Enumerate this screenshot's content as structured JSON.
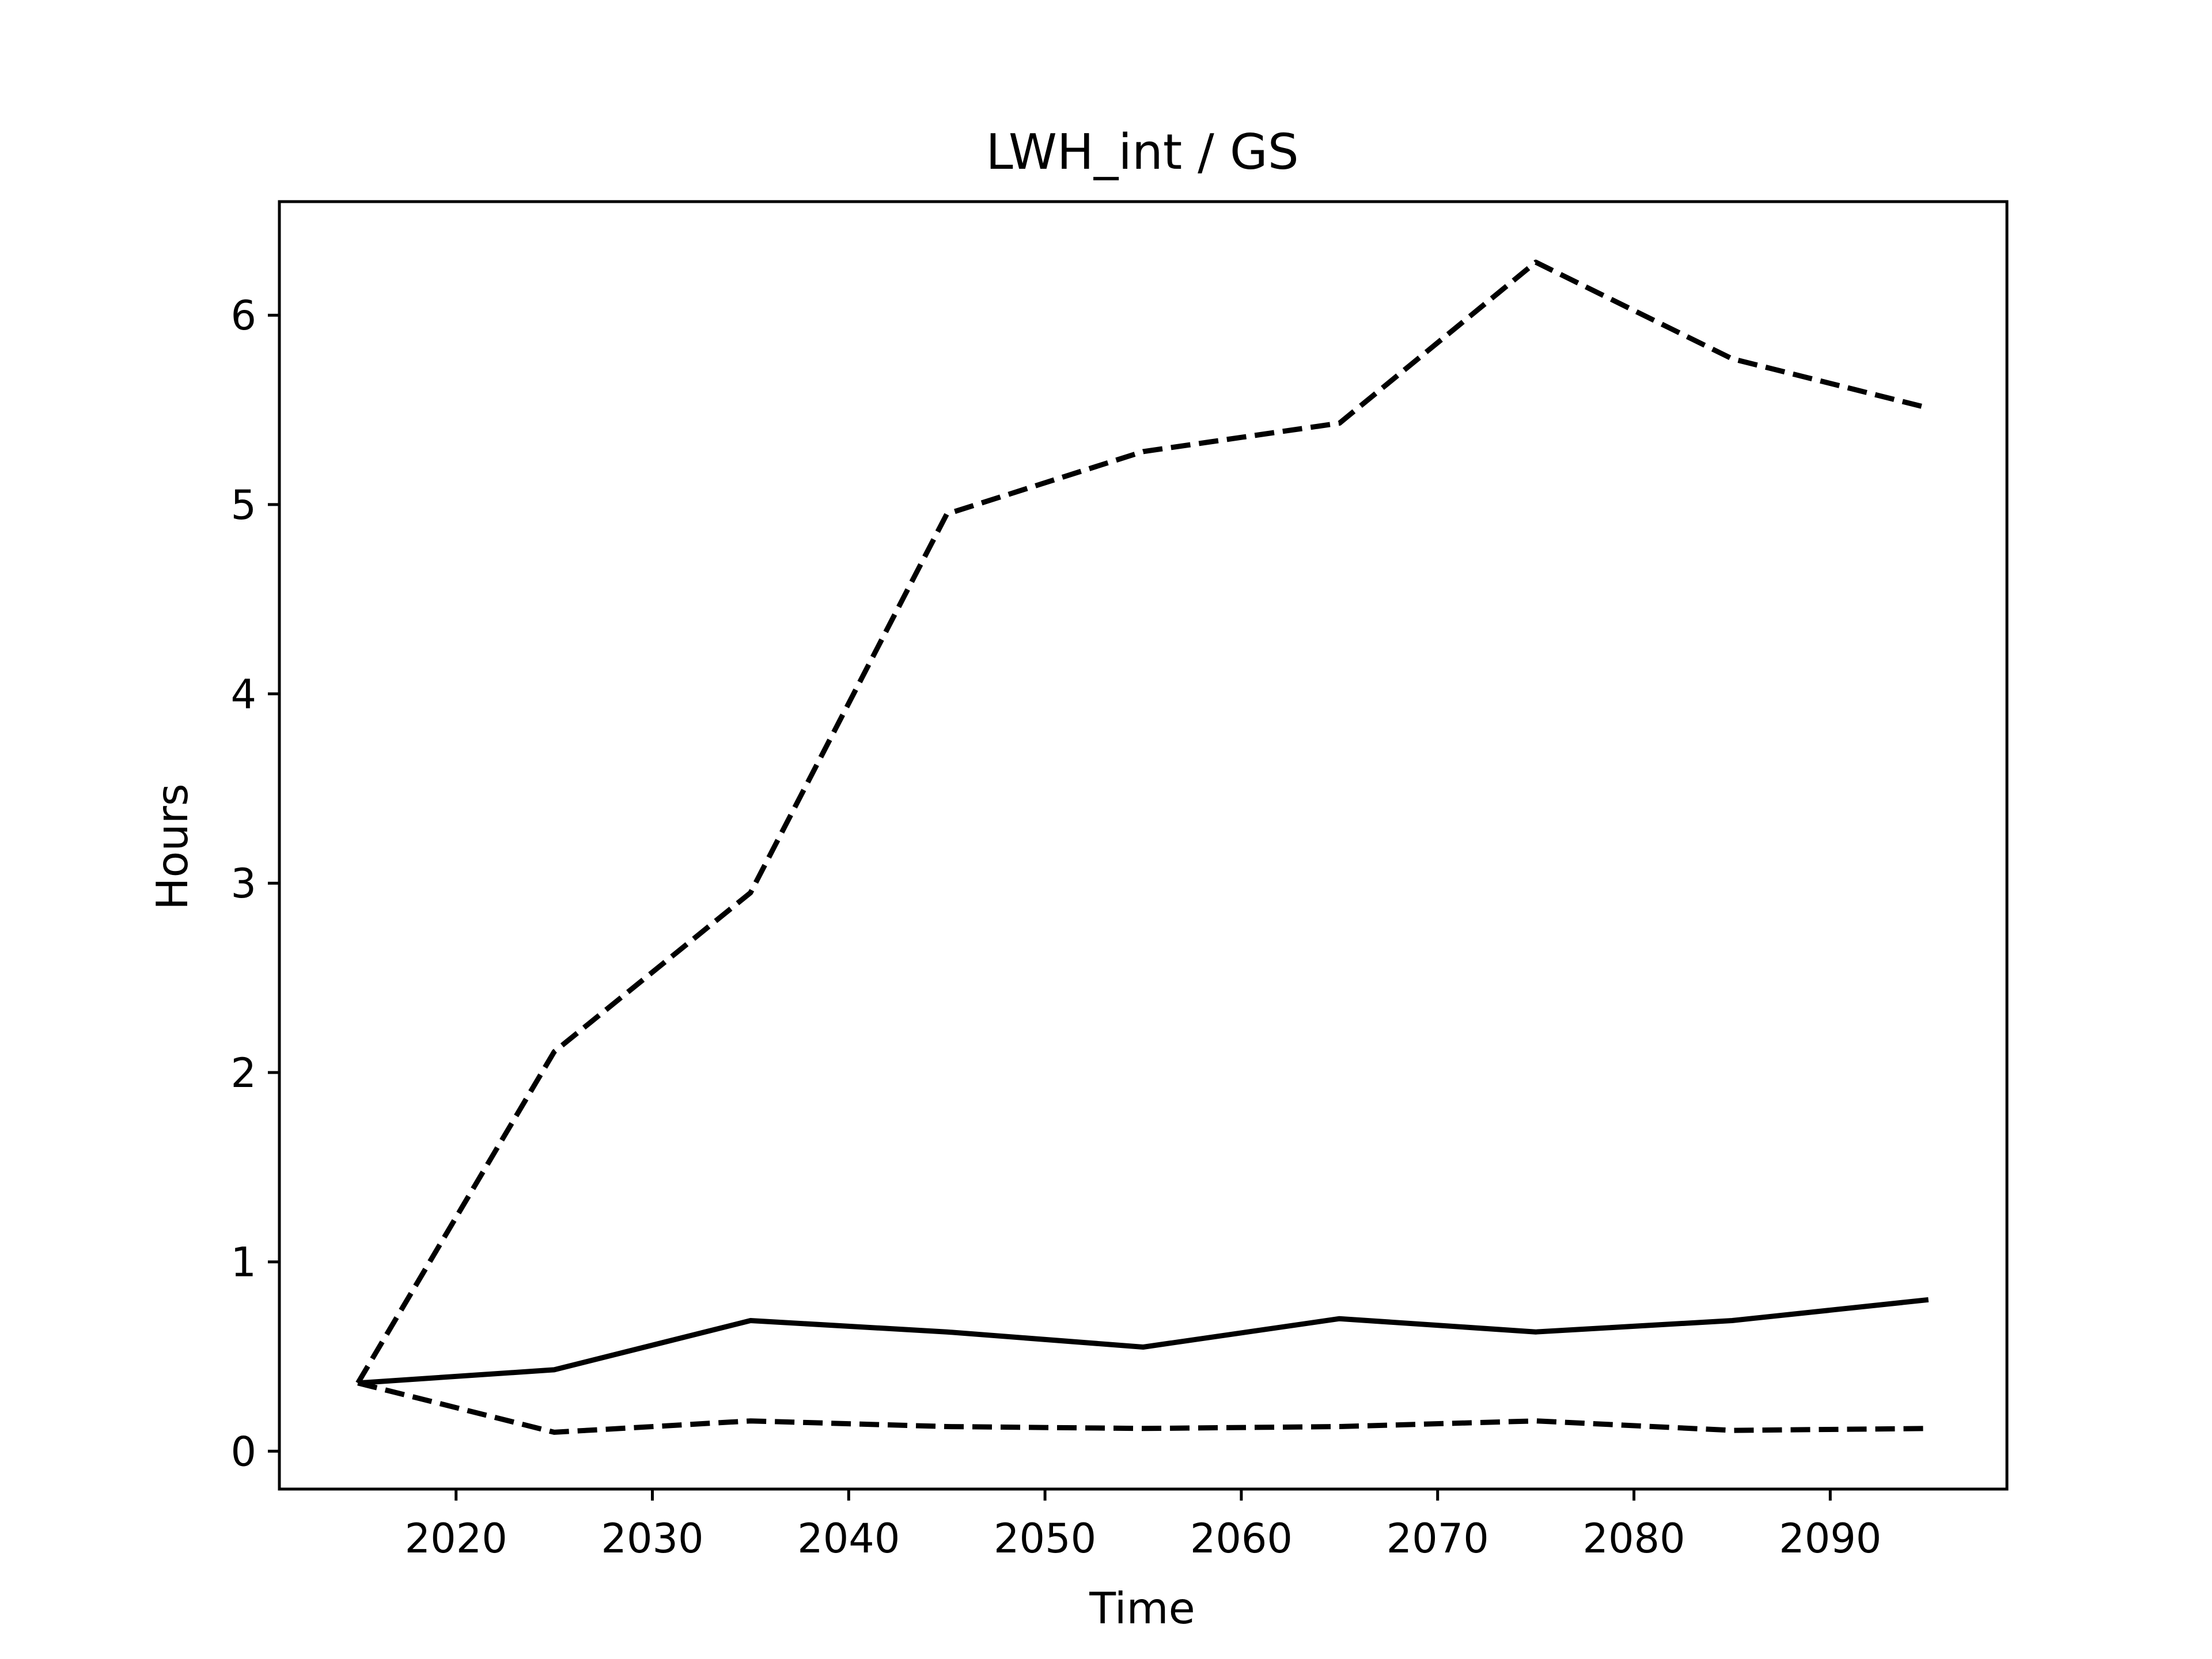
{
  "chart_data": {
    "type": "line",
    "title": "LWH_int / GS",
    "xlabel": "Time",
    "ylabel": "Hours",
    "xlim": [
      2011,
      2099
    ],
    "ylim": [
      -0.2,
      6.6
    ],
    "xticks": [
      2020,
      2030,
      2040,
      2050,
      2060,
      2070,
      2080,
      2090
    ],
    "yticks": [
      0,
      1,
      2,
      3,
      4,
      5,
      6
    ],
    "grid": false,
    "line_color": "#000000",
    "x": [
      2015,
      2025,
      2035,
      2045,
      2055,
      2065,
      2075,
      2085,
      2095
    ],
    "series": [
      {
        "style": "solid",
        "values": [
          0.36,
          0.43,
          0.69,
          0.63,
          0.55,
          0.7,
          0.63,
          0.69,
          0.8
        ]
      },
      {
        "style": "dashed",
        "values": [
          0.36,
          2.11,
          2.95,
          4.95,
          5.28,
          5.43,
          6.28,
          5.77,
          5.51
        ]
      },
      {
        "style": "dashed",
        "values": [
          0.36,
          0.1,
          0.16,
          0.13,
          0.12,
          0.13,
          0.16,
          0.11,
          0.12
        ]
      }
    ]
  }
}
